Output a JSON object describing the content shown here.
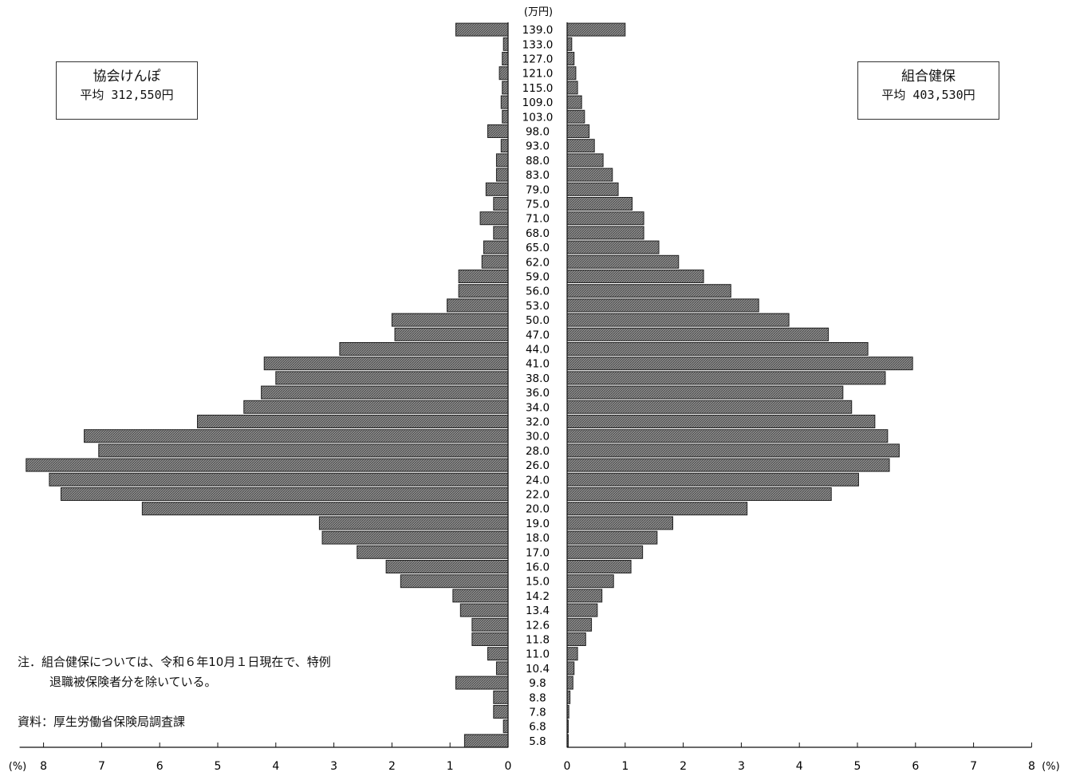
{
  "legend": {
    "left": {
      "name": "協会けんぽ",
      "average": "平均 312,550円"
    },
    "right": {
      "name": "組合健保",
      "average": "平均 403,530円"
    }
  },
  "notes": {
    "line1": "注．組合健保については、令和６年10月１日現在で、特例",
    "line2": "退職被保険者分を除いている。",
    "source": "資料：厚生労働省保険局調査課"
  },
  "chart_data": {
    "type": "bar",
    "orientation": "horizontal-population-pyramid",
    "unit_label": "(万円)",
    "x_axis_unit": "(%)",
    "x_ticks_left": [
      "8",
      "7",
      "6",
      "5",
      "4",
      "3",
      "2",
      "1",
      "0"
    ],
    "x_ticks_right": [
      "0",
      "1",
      "2",
      "3",
      "4",
      "5",
      "6",
      "7",
      "8"
    ],
    "xlim": [
      0,
      8
    ],
    "categories": [
      "139.0",
      "133.0",
      "127.0",
      "121.0",
      "115.0",
      "109.0",
      "103.0",
      "98.0",
      "93.0",
      "88.0",
      "83.0",
      "79.0",
      "75.0",
      "71.0",
      "68.0",
      "65.0",
      "62.0",
      "59.0",
      "56.0",
      "53.0",
      "50.0",
      "47.0",
      "44.0",
      "41.0",
      "38.0",
      "36.0",
      "34.0",
      "32.0",
      "30.0",
      "28.0",
      "26.0",
      "24.0",
      "22.0",
      "20.0",
      "19.0",
      "18.0",
      "17.0",
      "16.0",
      "15.0",
      "14.2",
      "13.4",
      "12.6",
      "11.8",
      "11.0",
      "10.4",
      "9.8",
      "8.8",
      "7.8",
      "6.8",
      "5.8"
    ],
    "series": [
      {
        "name": "協会けんぽ",
        "side": "left",
        "values": [
          0.9,
          0.08,
          0.1,
          0.15,
          0.1,
          0.12,
          0.1,
          0.35,
          0.12,
          0.2,
          0.2,
          0.38,
          0.25,
          0.48,
          0.25,
          0.42,
          0.45,
          0.85,
          0.85,
          1.05,
          2.0,
          1.95,
          2.9,
          4.2,
          4.0,
          4.25,
          4.55,
          5.35,
          7.3,
          7.05,
          8.3,
          7.9,
          7.7,
          6.3,
          3.25,
          3.2,
          2.6,
          2.1,
          1.85,
          0.95,
          0.82,
          0.62,
          0.62,
          0.35,
          0.2,
          0.9,
          0.25,
          0.25,
          0.08,
          0.75
        ]
      },
      {
        "name": "組合健保",
        "side": "right",
        "values": [
          1.0,
          0.08,
          0.12,
          0.15,
          0.18,
          0.25,
          0.3,
          0.38,
          0.47,
          0.62,
          0.78,
          0.88,
          1.12,
          1.32,
          1.32,
          1.58,
          1.92,
          2.35,
          2.82,
          3.3,
          3.82,
          4.5,
          5.18,
          5.95,
          5.48,
          4.75,
          4.9,
          5.3,
          5.52,
          5.72,
          5.55,
          5.02,
          4.55,
          3.1,
          1.82,
          1.55,
          1.3,
          1.1,
          0.8,
          0.6,
          0.52,
          0.42,
          0.32,
          0.18,
          0.12,
          0.1,
          0.05,
          0.03,
          0.02,
          0.02
        ]
      }
    ]
  }
}
